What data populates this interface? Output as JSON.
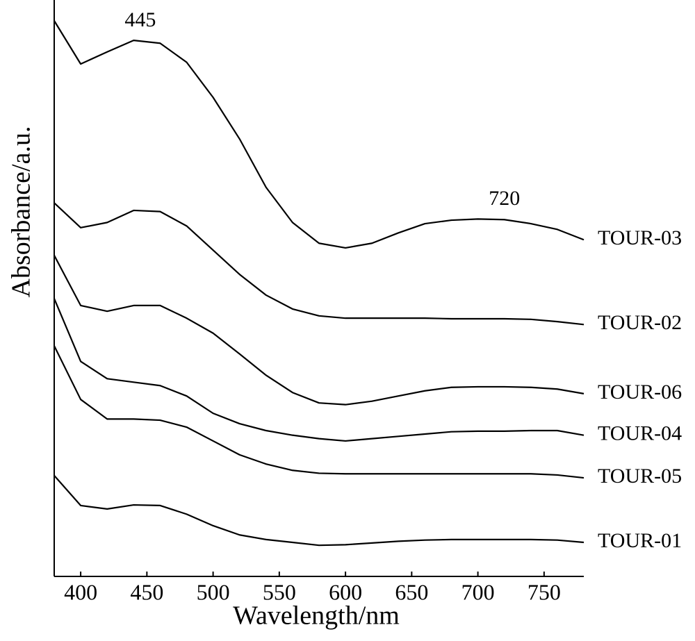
{
  "chart_data": {
    "type": "line",
    "x_label": "Wavelength/nm",
    "y_label": "Absorbance/a.u.",
    "x": [
      380,
      400,
      420,
      440,
      460,
      480,
      500,
      520,
      540,
      560,
      580,
      600,
      620,
      640,
      660,
      680,
      700,
      720,
      740,
      760,
      780
    ],
    "xlim": [
      380,
      780
    ],
    "xticks": [
      400,
      450,
      500,
      550,
      600,
      650,
      700,
      750
    ],
    "ylim": [
      0,
      100
    ],
    "annotations": [
      445,
      720
    ],
    "series": [
      {
        "name": "TOUR-03",
        "color": "#000000",
        "values": [
          96.4,
          88.9,
          91.0,
          93.0,
          92.5,
          89.2,
          83.1,
          75.9,
          67.5,
          61.4,
          57.8,
          57.0,
          57.8,
          59.6,
          61.2,
          61.8,
          62.0,
          61.9,
          61.2,
          60.2,
          58.4
        ]
      },
      {
        "name": "TOUR-02",
        "color": "#000000",
        "values": [
          64.8,
          60.5,
          61.4,
          63.5,
          63.3,
          60.8,
          56.6,
          52.4,
          48.8,
          46.4,
          45.2,
          44.8,
          44.8,
          44.8,
          44.8,
          44.7,
          44.7,
          44.7,
          44.6,
          44.2,
          43.7
        ]
      },
      {
        "name": "TOUR-06",
        "color": "#000000",
        "values": [
          55.7,
          47.0,
          46.0,
          47.0,
          47.0,
          44.8,
          42.2,
          38.6,
          34.9,
          31.9,
          30.1,
          29.8,
          30.4,
          31.3,
          32.2,
          32.8,
          32.9,
          32.9,
          32.8,
          32.5,
          31.7
        ]
      },
      {
        "name": "TOUR-04",
        "color": "#000000",
        "values": [
          48.2,
          37.3,
          34.3,
          33.7,
          33.1,
          31.3,
          28.3,
          26.5,
          25.3,
          24.5,
          23.9,
          23.5,
          23.9,
          24.3,
          24.7,
          25.1,
          25.2,
          25.2,
          25.3,
          25.3,
          24.5
        ]
      },
      {
        "name": "TOUR-05",
        "color": "#000000",
        "values": [
          40.0,
          30.7,
          27.3,
          27.3,
          27.1,
          25.9,
          23.5,
          21.1,
          19.5,
          18.4,
          17.9,
          17.8,
          17.8,
          17.8,
          17.8,
          17.8,
          17.8,
          17.8,
          17.8,
          17.6,
          17.1
        ]
      },
      {
        "name": "TOUR-01",
        "color": "#000000",
        "values": [
          17.5,
          12.3,
          11.7,
          12.4,
          12.3,
          10.8,
          8.8,
          7.2,
          6.4,
          5.9,
          5.4,
          5.5,
          5.8,
          6.1,
          6.3,
          6.4,
          6.4,
          6.4,
          6.4,
          6.3,
          5.9
        ]
      }
    ]
  }
}
